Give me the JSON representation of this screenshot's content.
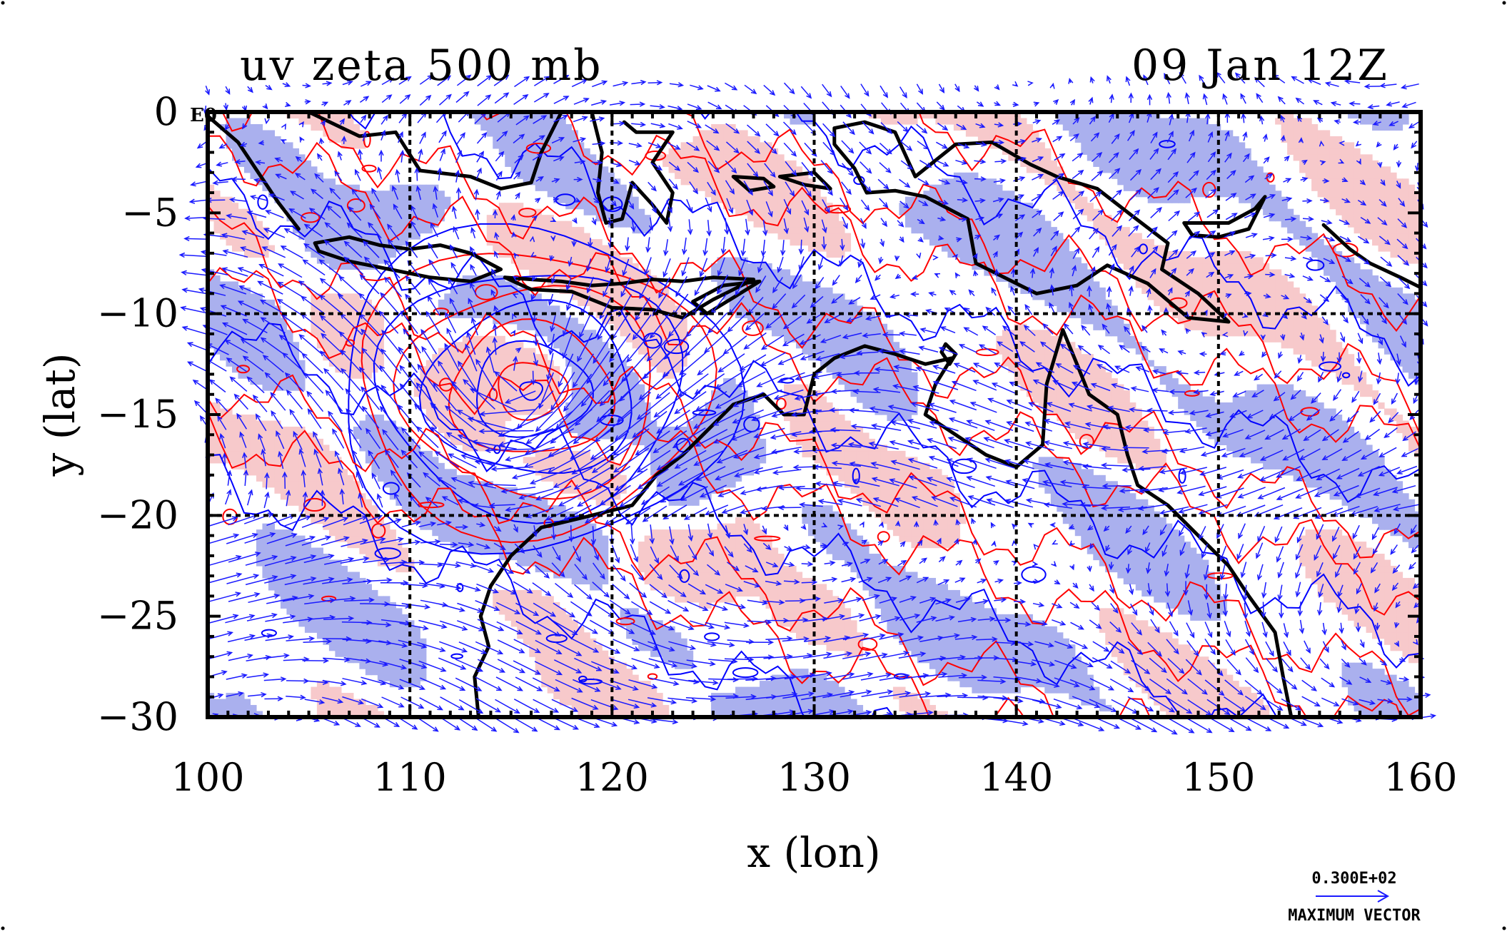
{
  "title_left": "uv zeta 500 mb",
  "title_right": "09 Jan 12Z",
  "corner_label": "E0",
  "xlabel": "x (lon)",
  "ylabel": "y (lat)",
  "legend": {
    "value_label": "0.300E+02",
    "caption": "MAXIMUM VECTOR",
    "arrow_color": "#1a1aff"
  },
  "colors": {
    "negative_fill": "#aab0ee",
    "positive_fill": "#f7c9cb",
    "positive_contour": "#ff0000",
    "negative_contour": "#0000ff",
    "vector": "#1a1aff",
    "coastline": "#000000",
    "grid": "#000000"
  },
  "chart_data": {
    "type": "heatmap",
    "title": "uv zeta 500 mb",
    "subtitle": "09 Jan 12Z",
    "xlabel": "x (lon)",
    "ylabel": "y (lat)",
    "xlim": [
      100,
      160
    ],
    "ylim": [
      -30,
      0
    ],
    "xticks": [
      100,
      110,
      120,
      130,
      140,
      150,
      160
    ],
    "yticks": [
      0,
      -5,
      -10,
      -15,
      -20,
      -25,
      -30
    ],
    "xtick_labels": [
      "100",
      "110",
      "120",
      "130",
      "140",
      "150",
      "160"
    ],
    "ytick_labels": [
      "0",
      "−5",
      "−10",
      "−15",
      "−20",
      "−25",
      "−30"
    ],
    "grid_lon": [
      110,
      120,
      130,
      140,
      150
    ],
    "grid_lat": [
      -10,
      -20
    ],
    "grid": true,
    "cyclone_center": {
      "lon": 116,
      "lat": -13.8
    },
    "max_vector": 30
  }
}
